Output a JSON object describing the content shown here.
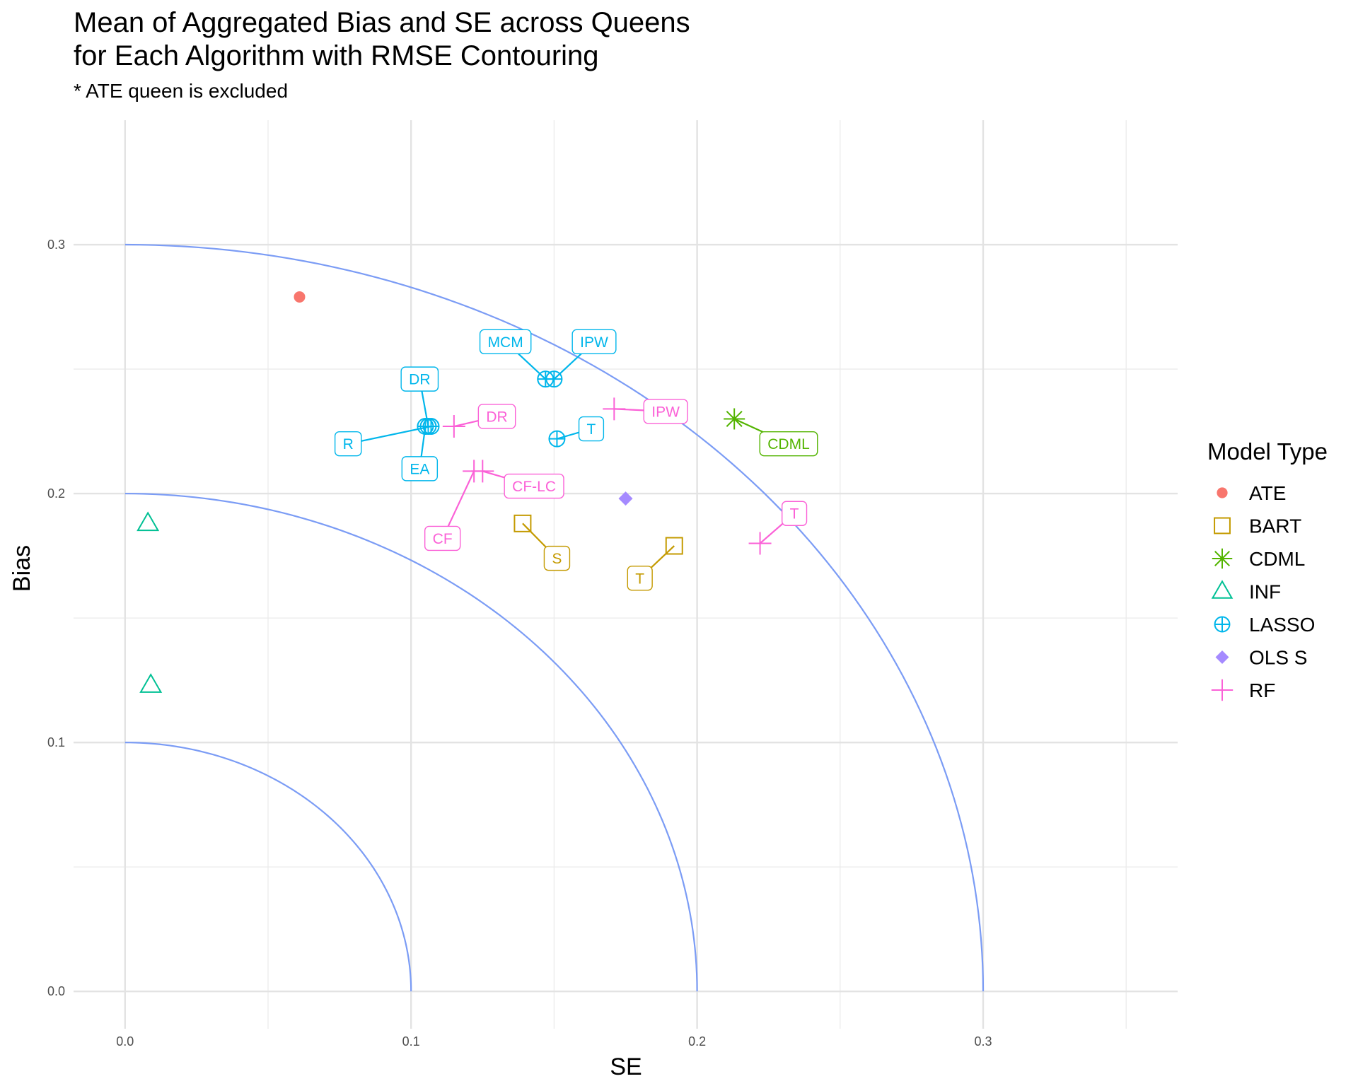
{
  "chart_data": {
    "type": "scatter",
    "title_lines": [
      "Mean of Aggregated Bias and SE across Queens",
      "for Each Algorithm with RMSE Contouring"
    ],
    "subtitle": "* ATE queen is excluded",
    "xlabel": "SE",
    "ylabel": "Bias",
    "xlim": [
      -0.018,
      0.368
    ],
    "ylim": [
      -0.015,
      0.35
    ],
    "x_ticks": [
      0.0,
      0.1,
      0.2,
      0.3
    ],
    "x_tick_labels": [
      "0.0",
      "0.1",
      "0.2",
      "0.3"
    ],
    "y_ticks": [
      0.0,
      0.1,
      0.2,
      0.3
    ],
    "y_tick_labels": [
      "0.0",
      "0.1",
      "0.2",
      "0.3"
    ],
    "grid": true,
    "rmse_contours": [
      0.1,
      0.2,
      0.3
    ],
    "contour_color": "#7b9cf5",
    "legend": {
      "title": "Model Type",
      "placement": "right",
      "entries": [
        {
          "name": "ATE",
          "color": "#F8766D",
          "shape": "circle"
        },
        {
          "name": "BART",
          "color": "#C49A00",
          "shape": "square"
        },
        {
          "name": "CDML",
          "color": "#53B400",
          "shape": "asterisk"
        },
        {
          "name": "INF",
          "color": "#00C094",
          "shape": "triangle"
        },
        {
          "name": "LASSO",
          "color": "#00B6EB",
          "shape": "circle-plus"
        },
        {
          "name": "OLS S",
          "color": "#A58AFF",
          "shape": "diamond"
        },
        {
          "name": "RF",
          "color": "#FB61D7",
          "shape": "plus"
        }
      ]
    },
    "points": [
      {
        "model": "ATE",
        "label": "",
        "se": 0.061,
        "bias": 0.279
      },
      {
        "model": "BART",
        "label": "S",
        "se": 0.139,
        "bias": 0.188,
        "label_se": 0.151,
        "label_bias": 0.174
      },
      {
        "model": "BART",
        "label": "T",
        "se": 0.192,
        "bias": 0.179,
        "label_se": 0.18,
        "label_bias": 0.166
      },
      {
        "model": "CDML",
        "label": "CDML",
        "se": 0.213,
        "bias": 0.23,
        "label_se": 0.232,
        "label_bias": 0.22
      },
      {
        "model": "INF",
        "label": "",
        "se": 0.008,
        "bias": 0.188
      },
      {
        "model": "INF",
        "label": "",
        "se": 0.009,
        "bias": 0.123
      },
      {
        "model": "LASSO",
        "label": "MCM",
        "se": 0.147,
        "bias": 0.246,
        "label_se": 0.133,
        "label_bias": 0.261
      },
      {
        "model": "LASSO",
        "label": "IPW",
        "se": 0.15,
        "bias": 0.246,
        "label_se": 0.164,
        "label_bias": 0.261
      },
      {
        "model": "LASSO",
        "label": "DR",
        "se": 0.106,
        "bias": 0.227,
        "label_se": 0.103,
        "label_bias": 0.246
      },
      {
        "model": "LASSO",
        "label": "R",
        "se": 0.107,
        "bias": 0.227,
        "label_se": 0.078,
        "label_bias": 0.22
      },
      {
        "model": "LASSO",
        "label": "EA",
        "se": 0.105,
        "bias": 0.227,
        "label_se": 0.103,
        "label_bias": 0.21
      },
      {
        "model": "LASSO",
        "label": "T",
        "se": 0.151,
        "bias": 0.222,
        "label_se": 0.163,
        "label_bias": 0.226
      },
      {
        "model": "OLS S",
        "label": "",
        "se": 0.175,
        "bias": 0.198
      },
      {
        "model": "RF",
        "label": "DR",
        "se": 0.115,
        "bias": 0.227,
        "label_se": 0.13,
        "label_bias": 0.231
      },
      {
        "model": "RF",
        "label": "IPW",
        "se": 0.171,
        "bias": 0.234,
        "label_se": 0.189,
        "label_bias": 0.233
      },
      {
        "model": "RF",
        "label": "T",
        "se": 0.222,
        "bias": 0.18,
        "label_se": 0.234,
        "label_bias": 0.192
      },
      {
        "model": "RF",
        "label": "CF",
        "se": 0.122,
        "bias": 0.209,
        "label_se": 0.111,
        "label_bias": 0.182
      },
      {
        "model": "RF",
        "label": "CF-LC",
        "se": 0.125,
        "bias": 0.209,
        "label_se": 0.143,
        "label_bias": 0.203
      }
    ]
  }
}
